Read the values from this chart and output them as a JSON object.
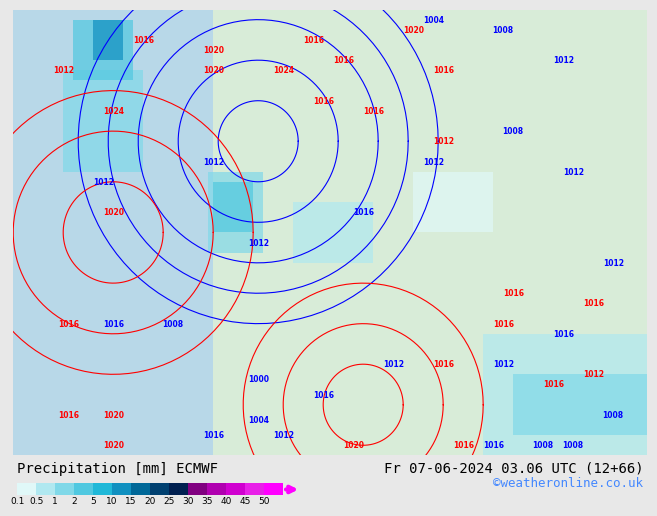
{
  "title_left": "Precipitation [mm] ECMWF",
  "title_right": "Fr 07-06-2024 03.06 UTC (12+66)",
  "credit": "©weatheronline.co.uk",
  "colorbar_levels": [
    0.1,
    0.5,
    1,
    2,
    5,
    10,
    15,
    20,
    25,
    30,
    35,
    40,
    45,
    50
  ],
  "colorbar_colors": [
    "#e0f8f8",
    "#b0e8f0",
    "#80d8e8",
    "#50c8e0",
    "#20b8d8",
    "#1090c0",
    "#006898",
    "#004070",
    "#002050",
    "#800080",
    "#b000b0",
    "#d000d0",
    "#e820e8",
    "#ff00ff"
  ],
  "bg_color": "#e8e8e8",
  "map_bg": "#d8ecd8",
  "sea_color": "#c8e8f0",
  "font_size_title": 10,
  "font_size_credit": 9
}
